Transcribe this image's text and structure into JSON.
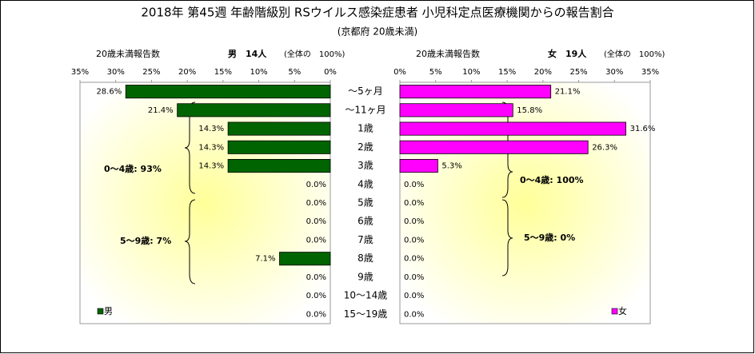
{
  "chart_data": {
    "type": "butterfly_bar",
    "title": "2018年 第45週 年齢階級別 RSウイルス感染症患者 小児科定点医療機関からの報告割合",
    "subtitle": "(京都府 20歳未満)",
    "categories": [
      "～5ヶ月",
      "～11ヶ月",
      "1歳",
      "2歳",
      "3歳",
      "4歳",
      "5歳",
      "6歳",
      "7歳",
      "8歳",
      "9歳",
      "10～14歳",
      "15～19歳"
    ],
    "xlim": [
      0,
      35
    ],
    "xticks": [
      {
        "value": 0,
        "label": "0%"
      },
      {
        "value": 5,
        "label": "5%"
      },
      {
        "value": 10,
        "label": "10%"
      },
      {
        "value": 15,
        "label": "15%"
      },
      {
        "value": 20,
        "label": "20%"
      },
      {
        "value": 25,
        "label": "25%"
      },
      {
        "value": 30,
        "label": "30%"
      },
      {
        "value": 35,
        "label": "35%"
      }
    ],
    "series": [
      {
        "name": "男",
        "color": "#006400",
        "header": "20歳未満報告数",
        "total_label": "男　14人",
        "share_label": "(全体の　100%)",
        "values": [
          28.6,
          21.4,
          14.3,
          14.3,
          14.3,
          0,
          0,
          0,
          0,
          7.1,
          0,
          0,
          0
        ],
        "value_labels": [
          "28.6%",
          "21.4%",
          "14.3%",
          "14.3%",
          "14.3%",
          "0.0%",
          "0.0%",
          "0.0%",
          "0.0%",
          "7.1%",
          "0.0%",
          "0.0%",
          "0.0%"
        ],
        "annotations": [
          "0～4歳: 93%",
          "5～9歳: 7%"
        ]
      },
      {
        "name": "女",
        "color": "#ff00ff",
        "header": "20歳未満報告数",
        "total_label": "女　19人",
        "share_label": "(全体の　100%)",
        "values": [
          21.1,
          15.8,
          31.6,
          26.3,
          5.3,
          0,
          0,
          0,
          0,
          0,
          0,
          0,
          0
        ],
        "value_labels": [
          "21.1%",
          "15.8%",
          "31.6%",
          "26.3%",
          "5.3%",
          "0.0%",
          "0.0%",
          "0.0%",
          "0.0%",
          "0.0%",
          "0.0%",
          "0.0%",
          "0.0%"
        ],
        "annotations": [
          "0～4歳: 100%",
          "5～9歳: 0%"
        ]
      }
    ]
  }
}
